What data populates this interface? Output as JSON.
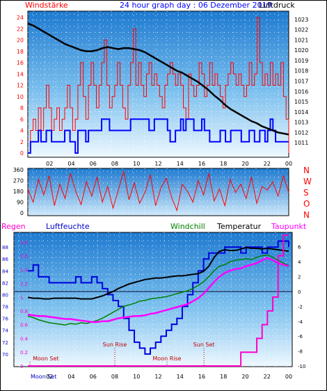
{
  "header": {
    "left": "Windstärke",
    "center": "24 hour graph day : 06 Dezember 2019",
    "right": "Luftdruck"
  },
  "colors": {
    "wind": "#ff0000",
    "gust": "#0000ff",
    "pressure": "#000000",
    "rain": "#ff00c8",
    "humidity": "#0000dd",
    "windchill": "#008000",
    "temperature": "#000000",
    "dewpoint": "#ff00ff",
    "sun_label": "#c00000"
  },
  "chart_data": [
    {
      "type": "line",
      "title": "",
      "y_left": {
        "label": "Windstärke",
        "min": 0,
        "max": 24,
        "ticks": [
          "0",
          "2",
          "4",
          "6",
          "8",
          "10",
          "12",
          "14",
          "16",
          "18",
          "20",
          "22",
          "24"
        ]
      },
      "y_right": {
        "label": "Luftdruck",
        "min": 1010,
        "max": 1024,
        "ticks": [
          "1011",
          "1012",
          "1013",
          "1014",
          "1015",
          "1016",
          "1017",
          "1018",
          "1019",
          "1020",
          "1021",
          "1022",
          "1023"
        ]
      },
      "x_ticks": [
        "02",
        "04",
        "06",
        "08",
        "10",
        "12",
        "14",
        "16",
        "18",
        "20",
        "22",
        "00"
      ],
      "series": [
        {
          "name": "Wind",
          "color": "#ff0000",
          "y": [
            0,
            4,
            6,
            4,
            8,
            4,
            8,
            12,
            8,
            4,
            6,
            8,
            4,
            6,
            8,
            12,
            8,
            4,
            6,
            12,
            16,
            10,
            6,
            12,
            16,
            12,
            8,
            12,
            16,
            20,
            12,
            8,
            10,
            12,
            16,
            12,
            8,
            6,
            12,
            16,
            22,
            12,
            16,
            12,
            10,
            14,
            16,
            12,
            14,
            12,
            10,
            8,
            12,
            14,
            16,
            14,
            12,
            14,
            12,
            8,
            6,
            14,
            12,
            10,
            12,
            16,
            14,
            10,
            12,
            16,
            12,
            14,
            12,
            10,
            8,
            12,
            14,
            16,
            14,
            12,
            14,
            12,
            10,
            12,
            16,
            12,
            14,
            24,
            16,
            12,
            14,
            12,
            16,
            12,
            14,
            12,
            16,
            10,
            6,
            0
          ]
        },
        {
          "name": "Böen",
          "color": "#0000ff",
          "y": [
            0,
            2,
            2,
            2,
            4,
            2,
            2,
            4,
            4,
            2,
            2,
            2,
            2,
            2,
            4,
            4,
            2,
            2,
            0,
            4,
            4,
            4,
            2,
            4,
            4,
            4,
            4,
            4,
            6,
            6,
            6,
            4,
            4,
            4,
            4,
            4,
            4,
            4,
            4,
            6,
            6,
            6,
            6,
            6,
            6,
            6,
            4,
            4,
            6,
            6,
            6,
            6,
            6,
            4,
            2,
            2,
            4,
            4,
            6,
            4,
            6,
            6,
            6,
            4,
            4,
            4,
            6,
            4,
            4,
            2,
            2,
            2,
            2,
            4,
            4,
            2,
            2,
            4,
            4,
            4,
            4,
            2,
            2,
            2,
            4,
            4,
            2,
            2,
            4,
            4,
            2,
            4,
            6,
            4,
            2,
            2,
            2,
            2,
            2,
            2
          ]
        },
        {
          "name": "Luftdruck",
          "color": "#000000",
          "y": [
            1022.6,
            1022.4,
            1022.1,
            1021.8,
            1021.5,
            1021.2,
            1020.9,
            1020.6,
            1020.4,
            1020.2,
            1020.0,
            1019.9,
            1019.9,
            1020.0,
            1020.2,
            1020.3,
            1020.2,
            1020.1,
            1020.2,
            1020.2,
            1020.1,
            1020.0,
            1019.8,
            1019.5,
            1019.2,
            1018.9,
            1018.6,
            1018.3,
            1018.0,
            1017.8,
            1017.5,
            1017.2,
            1016.9,
            1016.5,
            1016.1,
            1015.6,
            1015.2,
            1014.7,
            1014.3,
            1014.0,
            1013.7,
            1013.4,
            1013.1,
            1012.9,
            1012.6,
            1012.4,
            1012.2,
            1012.0,
            1011.9,
            1011.8
          ]
        }
      ]
    },
    {
      "type": "line",
      "title": "",
      "y_left": {
        "min": 0,
        "max": 360,
        "ticks": [
          "0",
          "90",
          "180",
          "270",
          "360"
        ]
      },
      "compass": [
        "N",
        "W",
        "S",
        "O",
        "N"
      ],
      "series": [
        {
          "name": "Windrichtung",
          "color": "#ff0000",
          "y": [
            200,
            90,
            280,
            150,
            310,
            60,
            240,
            120,
            330,
            180,
            70,
            260,
            140,
            300,
            90,
            220,
            40,
            190,
            350,
            110,
            250,
            80,
            170,
            320,
            60,
            210,
            290,
            130,
            20,
            240,
            180,
            90,
            270,
            150,
            330,
            100,
            200,
            60,
            280,
            170,
            240,
            120,
            300,
            80,
            220,
            190,
            260,
            140,
            310,
            170
          ]
        }
      ]
    },
    {
      "type": "line",
      "title": "",
      "legend": {
        "rain": "Regen",
        "humidity": "Luftfeuchte",
        "windchill": "Windchill",
        "temperature": "Temperatur",
        "dewpoint": "Taupunkt"
      },
      "y_humidity": {
        "min": 68,
        "max": 90,
        "ticks": [
          "70",
          "72",
          "74",
          "76",
          "78",
          "80",
          "82",
          "84",
          "86",
          "88"
        ]
      },
      "y_rain": {
        "min": 0,
        "max": 1.9,
        "ticks": [
          "0",
          "0.2",
          "0.4",
          "0.6",
          "0.8",
          "1",
          "1.2",
          "1.4",
          "1.6",
          "1.8"
        ]
      },
      "y_temp": {
        "min": -10,
        "max": 7,
        "ticks": [
          "-10",
          "-8",
          "-6",
          "-4",
          "-2",
          "0",
          "2",
          "4",
          "6"
        ]
      },
      "x_ticks": [
        "Moon Set",
        "04",
        "06",
        "08",
        "10",
        "12",
        "14",
        "16",
        "18",
        "20",
        "22",
        "00"
      ],
      "x_tick_overlap": "02",
      "annotations": [
        {
          "label": "Moon Set",
          "hour": 0.2
        },
        {
          "label": "Sun Rise",
          "hour": 8.0
        },
        {
          "label": "Moon Rise",
          "hour": 12.8
        },
        {
          "label": "Sun Set",
          "hour": 16.2
        }
      ],
      "series": [
        {
          "name": "Luftfeuchte",
          "color": "#0000dd",
          "y": [
            84,
            85,
            83,
            83,
            82,
            82,
            82,
            82,
            82,
            83,
            82,
            82,
            83,
            82,
            81,
            80,
            79,
            78,
            76,
            74,
            72,
            71,
            70,
            71,
            72,
            73,
            74,
            75,
            76,
            78,
            80,
            82,
            84,
            86,
            87,
            87,
            87,
            88,
            88,
            88,
            87,
            88,
            88,
            88,
            87,
            88,
            88,
            89,
            89,
            88
          ]
        },
        {
          "name": "Regen",
          "color": "#ff00c8",
          "y": [
            0,
            0,
            0,
            0,
            0,
            0,
            0,
            0,
            0,
            0,
            0,
            0,
            0,
            0,
            0,
            0,
            0,
            0,
            0,
            0,
            0,
            0,
            0,
            0,
            0,
            0,
            0,
            0,
            0,
            0,
            0,
            0,
            0,
            0,
            0,
            0,
            0,
            0,
            0,
            0,
            0.2,
            0.2,
            0.2,
            0.4,
            0.6,
            0.8,
            1.0,
            1.6,
            1.9,
            1.9
          ]
        },
        {
          "name": "Windchill",
          "color": "#008000",
          "y": [
            -3.3,
            -3.5,
            -3.8,
            -4.0,
            -4.2,
            -4.3,
            -4.4,
            -4.5,
            -4.3,
            -4.4,
            -4.2,
            -4.3,
            -4.1,
            -3.9,
            -3.6,
            -3.2,
            -2.8,
            -2.4,
            -2.0,
            -1.8,
            -1.6,
            -1.3,
            -1.2,
            -1.0,
            -0.9,
            -0.8,
            -0.7,
            -0.5,
            -0.3,
            -0.1,
            0.1,
            0.4,
            0.8,
            1.3,
            2.0,
            2.8,
            3.4,
            3.6,
            4.0,
            4.2,
            4.3,
            4.4,
            4.3,
            4.6,
            4.8,
            4.9,
            4.6,
            4.2,
            3.8,
            3.5
          ]
        },
        {
          "name": "Temperatur",
          "color": "#000000",
          "y": [
            -0.8,
            -0.9,
            -0.9,
            -1.0,
            -1.0,
            -0.9,
            -0.9,
            -0.9,
            -0.9,
            -0.9,
            -1.0,
            -1.0,
            -1.0,
            -0.8,
            -0.6,
            -0.3,
            0.0,
            0.4,
            0.7,
            1.0,
            1.2,
            1.4,
            1.6,
            1.7,
            1.8,
            1.8,
            1.9,
            2.0,
            2.1,
            2.1,
            2.2,
            2.3,
            2.4,
            2.7,
            3.4,
            4.6,
            5.4,
            5.6,
            5.5,
            5.5,
            5.7,
            5.9,
            5.8,
            5.8,
            5.7,
            5.8,
            5.7,
            5.6,
            5.5,
            5.4
          ]
        },
        {
          "name": "Taupunkt",
          "color": "#ff00ff",
          "y": [
            -3.1,
            -3.2,
            -3.3,
            -3.3,
            -3.4,
            -3.5,
            -3.6,
            -3.7,
            -3.7,
            -3.8,
            -3.9,
            -4.0,
            -4.1,
            -4.1,
            -4.0,
            -4.0,
            -3.8,
            -3.6,
            -3.5,
            -3.4,
            -3.3,
            -3.3,
            -3.2,
            -3.0,
            -2.9,
            -2.7,
            -2.5,
            -2.3,
            -2.1,
            -1.9,
            -1.7,
            -1.3,
            -0.9,
            -0.3,
            0.5,
            1.3,
            2.0,
            2.5,
            2.8,
            3.0,
            3.1,
            3.4,
            3.6,
            3.8,
            4.2,
            4.5,
            4.2,
            3.8,
            3.6,
            3.4
          ]
        }
      ]
    }
  ]
}
